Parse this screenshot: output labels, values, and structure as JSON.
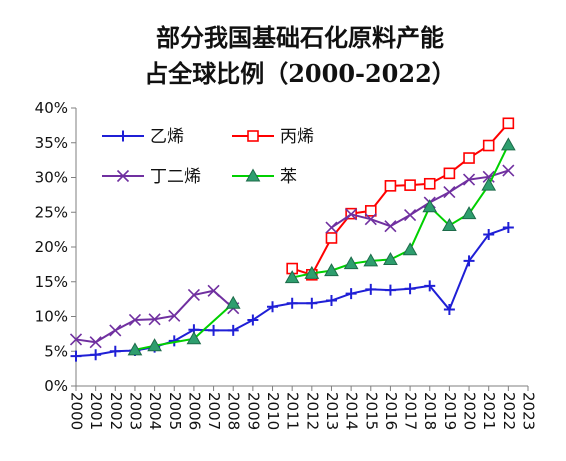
{
  "chart_data": {
    "type": "line",
    "title_line1": "部分我国基础石化原料产能",
    "title_line2": "占全球比例（2000-2022）",
    "xlabel": "",
    "ylabel": "",
    "x_ticks": [
      "2000",
      "2001",
      "2002",
      "2003",
      "2004",
      "2005",
      "2006",
      "2007",
      "2008",
      "2009",
      "2010",
      "2011",
      "2012",
      "2013",
      "2014",
      "2015",
      "2016",
      "2017",
      "2018",
      "2019",
      "2020",
      "2021",
      "2022",
      "2023"
    ],
    "y_ticks": [
      "0%",
      "5%",
      "10%",
      "15%",
      "20%",
      "25%",
      "30%",
      "35%",
      "40%"
    ],
    "ylim": [
      0,
      40
    ],
    "xlim": [
      2000,
      2023
    ],
    "grid": false,
    "legend_placement": "top-left",
    "series": [
      {
        "name": "乙烯",
        "color": "#1f1fd6",
        "marker": "plus",
        "x": [
          2000,
          2001,
          2002,
          2003,
          2004,
          2005,
          2006,
          2007,
          2008,
          2009,
          2010,
          2011,
          2012,
          2013,
          2014,
          2015,
          2016,
          2017,
          2018,
          2019,
          2020,
          2021,
          2022
        ],
        "values": [
          4.3,
          4.5,
          5.0,
          5.1,
          5.6,
          6.5,
          8.1,
          8.0,
          8.0,
          9.5,
          11.4,
          11.9,
          11.9,
          12.3,
          13.3,
          13.9,
          13.8,
          14.0,
          14.4,
          11.0,
          18.0,
          21.8,
          22.8
        ]
      },
      {
        "name": "丙烯",
        "color": "#ff0000",
        "marker": "square",
        "x": [
          2011,
          2012,
          2013,
          2014,
          2015,
          2016,
          2017,
          2018,
          2019,
          2020,
          2021,
          2022
        ],
        "values": [
          16.9,
          16.0,
          21.3,
          24.8,
          25.2,
          28.8,
          28.9,
          29.1,
          30.6,
          32.8,
          34.6,
          37.8
        ]
      },
      {
        "name": "丁二烯",
        "color": "#7030a0",
        "marker": "x",
        "x": [
          2000,
          2001,
          2002,
          2003,
          2004,
          2005,
          2006,
          2007,
          2008,
          null,
          2013,
          2014,
          2015,
          2016,
          2017,
          2018,
          2019,
          2020,
          2021,
          2022
        ],
        "values": [
          6.7,
          6.3,
          8.0,
          9.5,
          9.6,
          10.1,
          13.1,
          13.7,
          11.2,
          null,
          22.8,
          24.7,
          24.0,
          23.0,
          24.6,
          26.4,
          27.9,
          29.7,
          30.1,
          31.0
        ]
      },
      {
        "name": "苯",
        "color": "#00d000",
        "marker": "triangle",
        "x": [
          2003,
          2004,
          2006,
          2008,
          null,
          2011,
          2012,
          2013,
          2014,
          2015,
          2016,
          2017,
          2018,
          2019,
          2020,
          2021,
          2022
        ],
        "values": [
          5.2,
          5.8,
          6.8,
          11.9,
          null,
          15.6,
          16.2,
          16.6,
          17.6,
          18.0,
          18.2,
          19.6,
          25.8,
          23.1,
          24.8,
          28.9,
          34.7
        ]
      }
    ]
  }
}
